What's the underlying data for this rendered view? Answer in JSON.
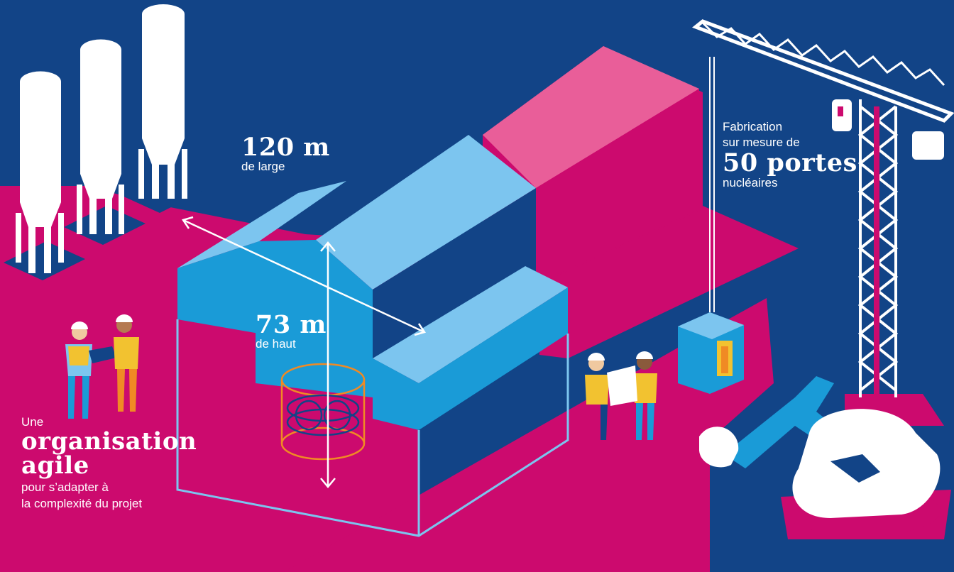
{
  "width_stat": {
    "value": "120 m",
    "caption": "de large"
  },
  "height_stat": {
    "value": "73 m",
    "caption": "de haut"
  },
  "doors_stat": {
    "line1": "Fabrication",
    "line2": "sur mesure de",
    "value": "50 portes",
    "caption": "nucléaires"
  },
  "agile_stat": {
    "intro": "Une",
    "line1": "organisation",
    "line2": "agile",
    "caption1": "pour s’adapter à",
    "caption2": "la complexité du projet"
  },
  "colors": {
    "background": "#124487",
    "ground": "#cc0a6e",
    "building_light": "#7cc5ef",
    "building_mid": "#1a9bd7",
    "building_dark": "#124487",
    "roof_pink": "#e95e99",
    "white": "#ffffff",
    "safety_yellow": "#f2c230",
    "orange": "#f08a24"
  }
}
